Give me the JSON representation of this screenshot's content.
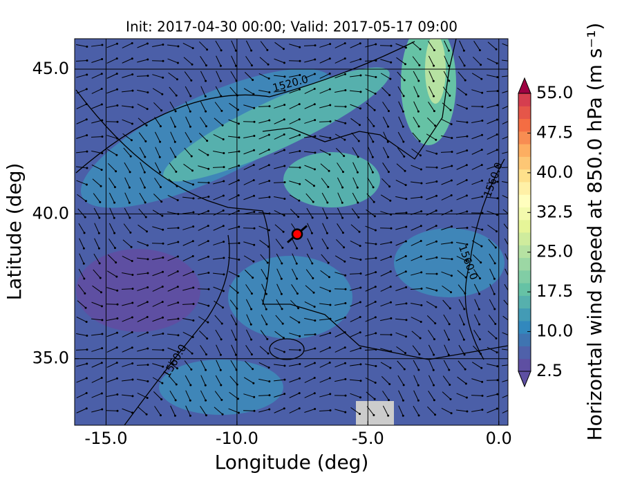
{
  "map": {
    "title": "Init: 2017-04-30 00:00; Valid: 2017-05-17 09:00",
    "xlabel": "Longitude (deg)",
    "ylabel": "Latitude (deg)",
    "xlim": [
      -16.2,
      0.35
    ],
    "ylim": [
      32.7,
      46.05
    ],
    "xticks": [
      {
        "value": -15,
        "label": "-15.0"
      },
      {
        "value": -10,
        "label": "-10.0"
      },
      {
        "value": -5,
        "label": "-5.0"
      },
      {
        "value": 0,
        "label": "0.0"
      }
    ],
    "yticks": [
      {
        "value": 35,
        "label": "35.0"
      },
      {
        "value": 40,
        "label": "40.0"
      },
      {
        "value": 45,
        "label": "45.0"
      }
    ],
    "contour_labels": [
      "1520.0",
      "1560.0",
      "1560.0",
      "1560.0"
    ],
    "point": {
      "lon": -7.7,
      "lat": 39.3,
      "color": "#ff0000"
    },
    "colorbar": {
      "label": "Horizontal wind speed at 850.0 hPa (m s⁻¹)",
      "lim": [
        2.5,
        55
      ],
      "ticks": [
        2.5,
        {
          "value": 10,
          "label": "10.0"
        },
        17.5,
        {
          "value": 25,
          "label": "25.0"
        },
        32.5,
        {
          "value": 40,
          "label": "40.0"
        },
        47.5,
        {
          "value": 55,
          "label": "55.0"
        }
      ],
      "colors": [
        "#5e4fa2",
        "#4f61aa",
        "#3f74b1",
        "#3288bd",
        "#439bb5",
        "#56b0ad",
        "#66c2a5",
        "#81cda5",
        "#9cd7a4",
        "#b6e2a2",
        "#cfec9d",
        "#e6f598",
        "#f3faad",
        "#fffebe",
        "#fff0a6",
        "#fee08b",
        "#fdc775",
        "#fdae61",
        "#f88d52",
        "#f46d43",
        "#e55649",
        "#d53e4f"
      ],
      "under_color": "#5e4fa2",
      "over_color": "#9e0142"
    }
  }
}
